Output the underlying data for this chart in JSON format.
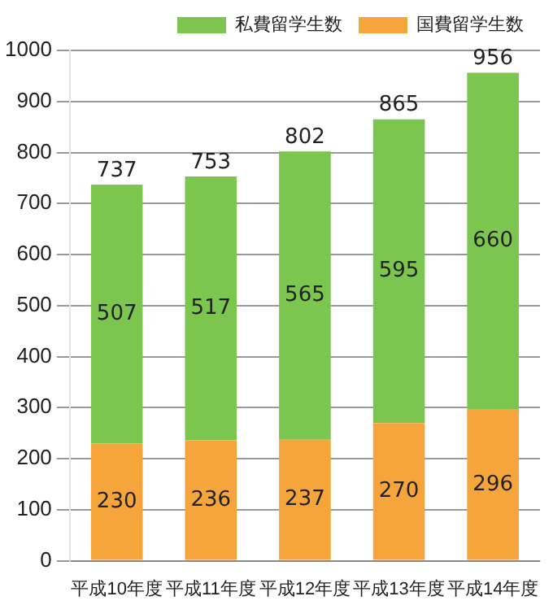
{
  "chart_data": {
    "type": "bar",
    "stacked": true,
    "categories": [
      "平成10年度",
      "平成11年度",
      "平成12年度",
      "平成13年度",
      "平成14年度"
    ],
    "series": [
      {
        "name": "国費留学生数",
        "color": "#f5a53c",
        "values": [
          230,
          236,
          237,
          270,
          296
        ]
      },
      {
        "name": "私費留学生数",
        "color": "#7cc54e",
        "values": [
          507,
          517,
          565,
          595,
          660
        ]
      }
    ],
    "totals": [
      "737",
      "753",
      "802",
      "865",
      "956"
    ],
    "data_labels": true,
    "ylim": [
      0,
      1000
    ],
    "yticks": [
      0,
      100,
      200,
      300,
      400,
      500,
      600,
      700,
      800,
      900,
      1000
    ],
    "grid": "y",
    "legend": "top right"
  }
}
